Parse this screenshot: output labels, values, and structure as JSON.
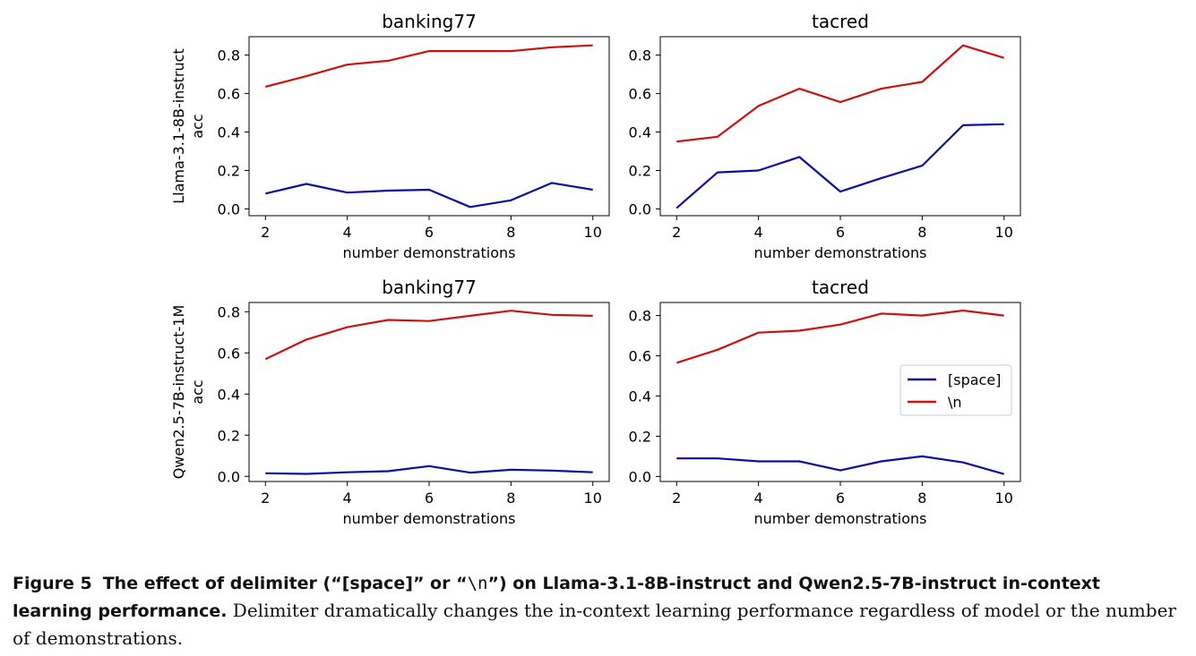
{
  "colors": {
    "space": "#0a0fa0",
    "newline": "#cc1111"
  },
  "rows": [
    "Llama-3.1-8B-instruct",
    "Qwen2.5-7B-instruct-1M"
  ],
  "row_ylabel_suffix": "acc",
  "chart_data": [
    {
      "type": "line",
      "row": 0,
      "col": 0,
      "title": "banking77",
      "xlabel": "number demonstrations",
      "ylabel": "Llama-3.1-8B-instruct acc",
      "x": [
        2,
        3,
        4,
        5,
        6,
        7,
        8,
        9,
        10
      ],
      "xlim": [
        1.6,
        10.4
      ],
      "ylim": [
        -0.035,
        0.895
      ],
      "xticks": [
        2,
        4,
        6,
        8,
        10
      ],
      "yticks": [
        0.0,
        0.2,
        0.4,
        0.6,
        0.8
      ],
      "ytick_labels": [
        "0.0",
        "0.2",
        "0.4",
        "0.6",
        "0.8"
      ],
      "series": [
        {
          "name": "[space]",
          "values": [
            0.08,
            0.13,
            0.085,
            0.095,
            0.1,
            0.01,
            0.045,
            0.135,
            0.1
          ]
        },
        {
          "name": "\\n",
          "values": [
            0.635,
            0.69,
            0.75,
            0.77,
            0.82,
            0.82,
            0.82,
            0.84,
            0.85
          ]
        }
      ]
    },
    {
      "type": "line",
      "row": 0,
      "col": 1,
      "title": "tacred",
      "xlabel": "number demonstrations",
      "ylabel": "",
      "x": [
        2,
        3,
        4,
        5,
        6,
        7,
        8,
        9,
        10
      ],
      "xlim": [
        1.6,
        10.4
      ],
      "ylim": [
        -0.035,
        0.895
      ],
      "xticks": [
        2,
        4,
        6,
        8,
        10
      ],
      "yticks": [
        0.0,
        0.2,
        0.4,
        0.6,
        0.8
      ],
      "ytick_labels": [
        "0.0",
        "0.2",
        "0.4",
        "0.6",
        "0.8"
      ],
      "series": [
        {
          "name": "[space]",
          "values": [
            0.005,
            0.19,
            0.2,
            0.27,
            0.09,
            0.16,
            0.225,
            0.435,
            0.44
          ]
        },
        {
          "name": "\\n",
          "values": [
            0.35,
            0.375,
            0.535,
            0.625,
            0.555,
            0.625,
            0.66,
            0.85,
            0.785
          ]
        }
      ]
    },
    {
      "type": "line",
      "row": 1,
      "col": 0,
      "title": "banking77",
      "xlabel": "number demonstrations",
      "ylabel": "Qwen2.5-7B-instruct-1M acc",
      "x": [
        2,
        3,
        4,
        5,
        6,
        7,
        8,
        9,
        10
      ],
      "xlim": [
        1.6,
        10.4
      ],
      "ylim": [
        -0.025,
        0.845
      ],
      "xticks": [
        2,
        4,
        6,
        8,
        10
      ],
      "yticks": [
        0.0,
        0.2,
        0.4,
        0.6,
        0.8
      ],
      "ytick_labels": [
        "0.0",
        "0.2",
        "0.4",
        "0.6",
        "0.8"
      ],
      "series": [
        {
          "name": "[space]",
          "values": [
            0.015,
            0.012,
            0.02,
            0.025,
            0.05,
            0.018,
            0.032,
            0.028,
            0.02
          ]
        },
        {
          "name": "\\n",
          "values": [
            0.57,
            0.665,
            0.725,
            0.76,
            0.755,
            0.78,
            0.805,
            0.785,
            0.78
          ]
        }
      ]
    },
    {
      "type": "line",
      "row": 1,
      "col": 1,
      "title": "tacred",
      "xlabel": "number demonstrations",
      "ylabel": "",
      "x": [
        2,
        3,
        4,
        5,
        6,
        7,
        8,
        9,
        10
      ],
      "xlim": [
        1.6,
        10.4
      ],
      "ylim": [
        -0.025,
        0.865
      ],
      "xticks": [
        2,
        4,
        6,
        8,
        10
      ],
      "yticks": [
        0.0,
        0.2,
        0.4,
        0.6,
        0.8
      ],
      "ytick_labels": [
        "0.0",
        "0.2",
        "0.4",
        "0.6",
        "0.8"
      ],
      "legend": {
        "placement": "center-right",
        "entries": [
          "[space]",
          "\\n"
        ]
      },
      "series": [
        {
          "name": "[space]",
          "values": [
            0.09,
            0.09,
            0.075,
            0.075,
            0.03,
            0.075,
            0.1,
            0.07,
            0.012
          ]
        },
        {
          "name": "\\n",
          "values": [
            0.565,
            0.63,
            0.715,
            0.725,
            0.755,
            0.81,
            0.8,
            0.825,
            0.8
          ]
        }
      ]
    }
  ],
  "caption": {
    "label": "Figure 5",
    "title_pre": "The effect of delimiter (“[space]” or “",
    "title_code": "\\n",
    "title_post": "”) on Llama-3.1-8B-instruct and Qwen2.5-7B-instruct in-context learning performance.",
    "body": "Delimiter dramatically changes the in-context learning performance regardless of model or the number of demonstrations."
  }
}
